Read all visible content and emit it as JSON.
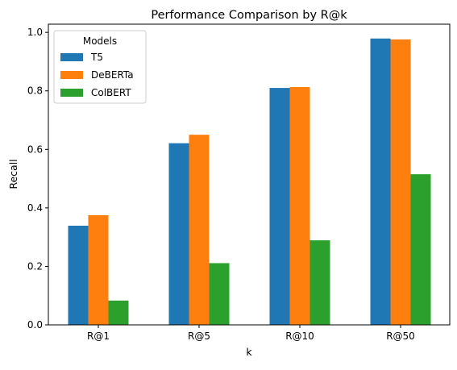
{
  "chart_data": {
    "type": "bar",
    "title": "Performance Comparison by R@k",
    "xlabel": "k",
    "ylabel": "Recall",
    "categories": [
      "R@1",
      "R@5",
      "R@10",
      "R@50"
    ],
    "series": [
      {
        "name": "T5",
        "values": [
          0.339,
          0.621,
          0.81,
          0.979
        ],
        "color": "#1f77b4"
      },
      {
        "name": "DeBERTa",
        "values": [
          0.375,
          0.65,
          0.813,
          0.976
        ],
        "color": "#ff7f0e"
      },
      {
        "name": "ColBERT",
        "values": [
          0.083,
          0.211,
          0.289,
          0.515
        ],
        "color": "#2ca02c"
      }
    ],
    "ylim": [
      0,
      1.028
    ],
    "yticks": [
      0.0,
      0.2,
      0.4,
      0.6,
      0.8,
      1.0
    ],
    "ytick_labels": [
      "0.0",
      "0.2",
      "0.4",
      "0.6",
      "0.8",
      "1.0"
    ],
    "legend": {
      "title": "Models",
      "position": "top-left"
    },
    "grid": false
  }
}
